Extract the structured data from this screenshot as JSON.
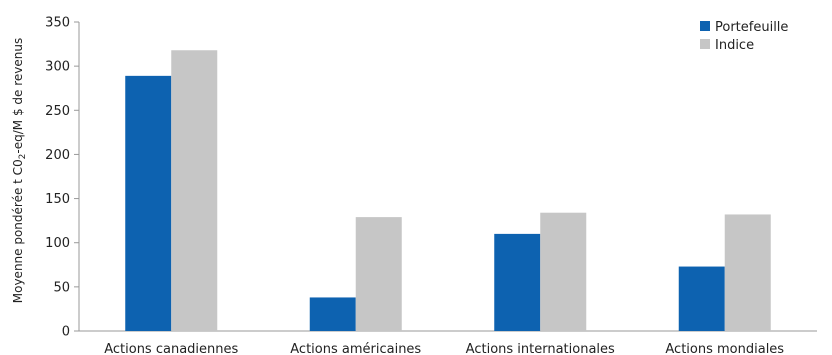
{
  "chart_data": {
    "type": "bar",
    "categories": [
      "Actions canadiennes",
      "Actions américaines",
      "Actions internationales",
      "Actions mondiales"
    ],
    "series": [
      {
        "name": "Portefeuille",
        "color": "#0d62b0",
        "values": [
          289,
          38,
          110,
          73
        ]
      },
      {
        "name": "Indice",
        "color": "#c6c6c6",
        "values": [
          318,
          129,
          134,
          132
        ]
      }
    ],
    "ylabel": {
      "prefix": "Moyenne pondérée t C0",
      "sub": "2",
      "suffix": "-eq/M $ de revenus"
    },
    "xlabel": "",
    "ylim": [
      0,
      350
    ],
    "yticks": [
      "0",
      "50",
      "100",
      "150",
      "200",
      "250",
      "300",
      "350"
    ],
    "grid": false,
    "legend_position": "top-right"
  }
}
